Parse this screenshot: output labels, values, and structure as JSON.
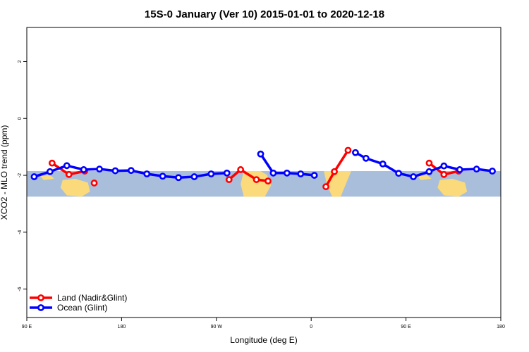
{
  "chart_data": {
    "type": "line",
    "title": "15S-0 January (Ver 10)   2015-01-01 to 2020-12-18",
    "xlabel": "Longitude (deg E)",
    "ylabel": "XCO2 - MLO trend (ppm)",
    "xlim": [
      90,
      540
    ],
    "ylim": [
      -7,
      3.2
    ],
    "x_ticks": [
      {
        "value": 90,
        "label": "90 E"
      },
      {
        "value": 180,
        "label": "180"
      },
      {
        "value": 270,
        "label": "90 W"
      },
      {
        "value": 360,
        "label": "0"
      },
      {
        "value": 450,
        "label": "90 E"
      },
      {
        "value": 540,
        "label": "180"
      }
    ],
    "y_ticks": [
      {
        "value": 2,
        "label": "2"
      },
      {
        "value": 0,
        "label": "0"
      },
      {
        "value": -2,
        "label": "-2"
      },
      {
        "value": -4,
        "label": "-4"
      },
      {
        "value": -6,
        "label": "-6"
      }
    ],
    "grid": false,
    "legend_position": "bottom-left",
    "map_strip": {
      "lat_range_ylim": [
        -2.75,
        -1.85
      ],
      "ocean_color": "#A8BEDB",
      "land_color": "#FADA7A"
    },
    "series": [
      {
        "name": "Land (Nadir&Glint)",
        "color": "#FF0000",
        "segments": [
          [
            [
              114,
              -1.57
            ],
            [
              130,
              -1.97
            ],
            [
              145,
              -1.85
            ]
          ],
          [
            [
              154,
              -2.27
            ]
          ],
          [
            [
              282,
              -2.15
            ],
            [
              293,
              -1.8
            ],
            [
              308,
              -2.15
            ],
            [
              319,
              -2.2
            ]
          ],
          [
            [
              374,
              -2.4
            ],
            [
              382,
              -1.87
            ],
            [
              395,
              -1.12
            ]
          ],
          [
            [
              472,
              -1.57
            ],
            [
              486,
              -1.97
            ],
            [
              500,
              -1.85
            ]
          ]
        ]
      },
      {
        "name": "Ocean (Glint)",
        "color": "#0000FF",
        "segments": [
          [
            [
              97,
              -2.05
            ],
            [
              112,
              -1.87
            ],
            [
              128,
              -1.66
            ],
            [
              144,
              -1.8
            ],
            [
              159,
              -1.78
            ],
            [
              174,
              -1.84
            ],
            [
              189,
              -1.83
            ],
            [
              204,
              -1.95
            ],
            [
              219,
              -2.03
            ],
            [
              234,
              -2.08
            ],
            [
              249,
              -2.05
            ],
            [
              265,
              -1.95
            ],
            [
              280,
              -1.92
            ]
          ],
          [
            [
              312,
              -1.25
            ],
            [
              324,
              -1.92
            ],
            [
              337,
              -1.92
            ],
            [
              350,
              -1.95
            ],
            [
              363,
              -2.0
            ]
          ],
          [
            [
              402,
              -1.2
            ],
            [
              412,
              -1.4
            ],
            [
              428,
              -1.6
            ],
            [
              443,
              -1.93
            ],
            [
              457,
              -2.05
            ],
            [
              472,
              -1.87
            ],
            [
              486,
              -1.67
            ],
            [
              501,
              -1.8
            ],
            [
              517,
              -1.78
            ],
            [
              532,
              -1.85
            ]
          ]
        ]
      }
    ]
  }
}
